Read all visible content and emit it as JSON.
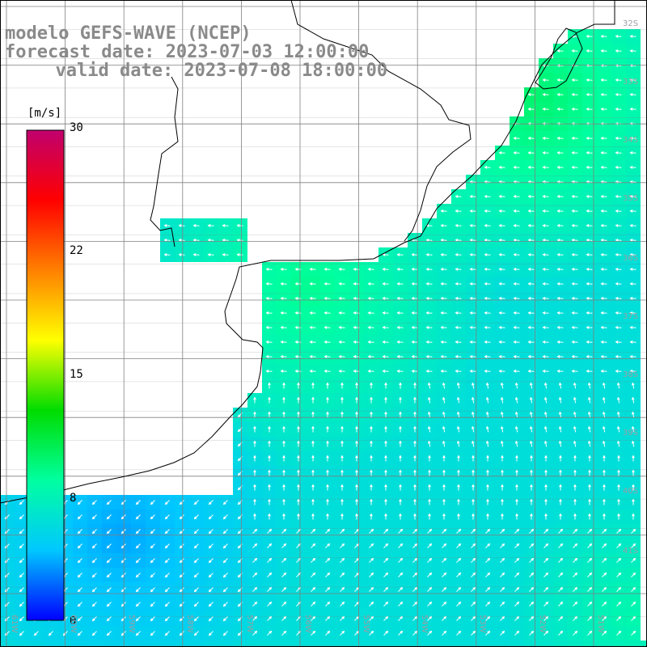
{
  "title": {
    "model": "modelo GEFS-WAVE (NCEP)",
    "forecast": "forecast date: 2023-07-03 12:00:00",
    "valid": "  valid date: 2023-07-08 18:00:00"
  },
  "colorbar": {
    "unit": "[m/s]",
    "ticks": [
      "30",
      "22",
      "15",
      "8",
      "0"
    ],
    "stops": [
      "#0000ff",
      "#00c8ff",
      "#00ffa0",
      "#00dc00",
      "#ffff00",
      "#ff8000",
      "#ff0000",
      "#c0006e"
    ]
  },
  "grid": {
    "lat_labels": [
      "32S",
      "33S",
      "34S",
      "35S",
      "36S",
      "37S",
      "38S",
      "39S",
      "40S",
      "41S"
    ],
    "lon_labels": [
      "61W",
      "60W",
      "59W",
      "58W",
      "57W",
      "56W",
      "55W",
      "54W",
      "53W",
      "52W",
      "51W"
    ]
  },
  "colors": {
    "land": "#ffffff",
    "coast": "#000000",
    "gridline": "#808080",
    "arrow": "#ffffff"
  }
}
